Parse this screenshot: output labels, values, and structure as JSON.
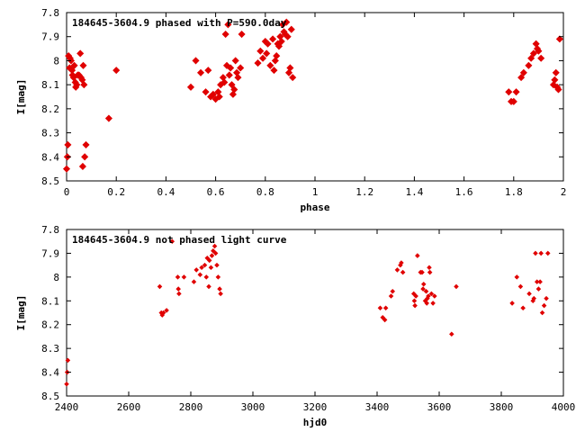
{
  "chart_data": [
    {
      "type": "scatter",
      "title": "184645-3604.9 phased with P=590.0day",
      "xlabel": "phase",
      "ylabel": "I[mag]",
      "xlim": [
        0,
        2
      ],
      "ylim": [
        8.5,
        7.8
      ],
      "y_inverted": true,
      "xticks": [
        0,
        0.2,
        0.4,
        0.6,
        0.8,
        1,
        1.2,
        1.4,
        1.6,
        1.8,
        2
      ],
      "xtick_labels": [
        "0",
        "0.2",
        "0.4",
        "0.6",
        "0.8",
        "1",
        "1.2",
        "1.4",
        "1.6",
        "1.8",
        "2"
      ],
      "yticks": [
        7.8,
        7.9,
        8.0,
        8.1,
        8.2,
        8.3,
        8.4,
        8.5
      ],
      "ytick_labels": [
        "7.8",
        "7.9",
        "8",
        "8.1",
        "8.2",
        "8.3",
        "8.4",
        "8.5"
      ],
      "grid": false,
      "color": "#e00000",
      "series": [
        {
          "name": "",
          "points": [
            [
              0.0,
              8.45
            ],
            [
              0.003,
              8.4
            ],
            [
              0.005,
              8.35
            ],
            [
              0.008,
              7.98
            ],
            [
              0.012,
              8.03
            ],
            [
              0.014,
              7.99
            ],
            [
              0.018,
              8.0
            ],
            [
              0.022,
              8.04
            ],
            [
              0.024,
              8.06
            ],
            [
              0.028,
              8.07
            ],
            [
              0.031,
              8.02
            ],
            [
              0.035,
              8.09
            ],
            [
              0.037,
              8.11
            ],
            [
              0.041,
              8.1
            ],
            [
              0.045,
              8.06
            ],
            [
              0.05,
              8.06
            ],
            [
              0.055,
              7.97
            ],
            [
              0.058,
              8.07
            ],
            [
              0.063,
              8.08
            ],
            [
              0.067,
              8.02
            ],
            [
              0.07,
              8.1
            ],
            [
              0.065,
              8.44
            ],
            [
              0.073,
              8.4
            ],
            [
              0.078,
              8.35
            ],
            [
              0.17,
              8.24
            ],
            [
              0.2,
              8.04
            ],
            [
              0.5,
              8.11
            ],
            [
              0.52,
              8.0
            ],
            [
              0.54,
              8.05
            ],
            [
              0.56,
              8.13
            ],
            [
              0.57,
              8.04
            ],
            [
              0.58,
              8.15
            ],
            [
              0.59,
              8.14
            ],
            [
              0.6,
              8.16
            ],
            [
              0.61,
              8.13
            ],
            [
              0.615,
              8.15
            ],
            [
              0.62,
              8.1
            ],
            [
              0.63,
              8.07
            ],
            [
              0.635,
              8.09
            ],
            [
              0.64,
              7.89
            ],
            [
              0.645,
              8.02
            ],
            [
              0.65,
              7.85
            ],
            [
              0.655,
              8.06
            ],
            [
              0.66,
              8.03
            ],
            [
              0.665,
              8.1
            ],
            [
              0.67,
              8.14
            ],
            [
              0.675,
              8.12
            ],
            [
              0.68,
              8.0
            ],
            [
              0.685,
              8.05
            ],
            [
              0.69,
              8.07
            ],
            [
              0.7,
              8.03
            ],
            [
              0.705,
              7.89
            ],
            [
              0.77,
              8.01
            ],
            [
              0.78,
              7.96
            ],
            [
              0.79,
              7.99
            ],
            [
              0.8,
              7.92
            ],
            [
              0.805,
              7.97
            ],
            [
              0.81,
              7.93
            ],
            [
              0.82,
              8.02
            ],
            [
              0.83,
              7.91
            ],
            [
              0.835,
              8.04
            ],
            [
              0.84,
              8.0
            ],
            [
              0.845,
              7.98
            ],
            [
              0.85,
              7.93
            ],
            [
              0.855,
              7.94
            ],
            [
              0.86,
              7.9
            ],
            [
              0.865,
              7.92
            ],
            [
              0.87,
              7.85
            ],
            [
              0.875,
              7.88
            ],
            [
              0.88,
              7.89
            ],
            [
              0.885,
              7.84
            ],
            [
              0.89,
              7.9
            ],
            [
              0.895,
              8.05
            ],
            [
              0.9,
              8.03
            ],
            [
              0.905,
              7.87
            ],
            [
              0.91,
              8.07
            ],
            [
              1.78,
              8.13
            ],
            [
              1.79,
              8.17
            ],
            [
              1.8,
              8.17
            ],
            [
              1.81,
              8.13
            ],
            [
              1.83,
              8.07
            ],
            [
              1.84,
              8.05
            ],
            [
              1.86,
              8.02
            ],
            [
              1.87,
              7.99
            ],
            [
              1.88,
              7.97
            ],
            [
              1.89,
              7.93
            ],
            [
              1.895,
              7.95
            ],
            [
              1.9,
              7.96
            ],
            [
              1.91,
              7.99
            ],
            [
              1.96,
              8.1
            ],
            [
              1.965,
              8.08
            ],
            [
              1.97,
              8.05
            ],
            [
              1.975,
              8.11
            ],
            [
              1.98,
              8.12
            ],
            [
              1.985,
              7.91
            ]
          ]
        }
      ]
    },
    {
      "type": "scatter",
      "title": "184645-3604.9 not phased light curve",
      "xlabel": "hjd0",
      "ylabel": "I[mag]",
      "xlim": [
        2400,
        4000
      ],
      "ylim": [
        8.5,
        7.8
      ],
      "y_inverted": true,
      "xticks": [
        2400,
        2600,
        2800,
        3000,
        3200,
        3400,
        3600,
        3800,
        4000
      ],
      "xtick_labels": [
        "2400",
        "2600",
        "2800",
        "3000",
        "3200",
        "3400",
        "3600",
        "3800",
        "4000"
      ],
      "yticks": [
        7.8,
        7.9,
        8.0,
        8.1,
        8.2,
        8.3,
        8.4,
        8.5
      ],
      "ytick_labels": [
        "7.8",
        "7.9",
        "8",
        "8.1",
        "8.2",
        "8.3",
        "8.4",
        "8.5"
      ],
      "grid": false,
      "color": "#e00000",
      "series": [
        {
          "name": "",
          "points": [
            [
              2400,
              8.45
            ],
            [
              2402,
              8.4
            ],
            [
              2404,
              8.35
            ],
            [
              2700,
              8.04
            ],
            [
              2705,
              8.15
            ],
            [
              2708,
              8.16
            ],
            [
              2712,
              8.15
            ],
            [
              2722,
              8.14
            ],
            [
              2740,
              7.85
            ],
            [
              2758,
              8.0
            ],
            [
              2760,
              8.05
            ],
            [
              2762,
              8.07
            ],
            [
              2778,
              8.0
            ],
            [
              2810,
              8.02
            ],
            [
              2818,
              7.97
            ],
            [
              2830,
              7.99
            ],
            [
              2835,
              7.96
            ],
            [
              2845,
              7.95
            ],
            [
              2850,
              8.0
            ],
            [
              2853,
              7.92
            ],
            [
              2858,
              8.04
            ],
            [
              2860,
              7.93
            ],
            [
              2865,
              7.96
            ],
            [
              2868,
              7.91
            ],
            [
              2872,
              7.89
            ],
            [
              2877,
              7.87
            ],
            [
              2880,
              7.9
            ],
            [
              2884,
              7.95
            ],
            [
              2888,
              8.0
            ],
            [
              2893,
              8.05
            ],
            [
              2896,
              8.07
            ],
            [
              3410,
              8.13
            ],
            [
              3418,
              8.17
            ],
            [
              3425,
              8.18
            ],
            [
              3428,
              8.13
            ],
            [
              3445,
              8.08
            ],
            [
              3450,
              8.06
            ],
            [
              3465,
              7.97
            ],
            [
              3475,
              7.95
            ],
            [
              3478,
              7.94
            ],
            [
              3483,
              7.98
            ],
            [
              3518,
              8.07
            ],
            [
              3520,
              8.1
            ],
            [
              3522,
              8.12
            ],
            [
              3525,
              8.08
            ],
            [
              3530,
              7.91
            ],
            [
              3540,
              7.98
            ],
            [
              3545,
              7.98
            ],
            [
              3548,
              8.05
            ],
            [
              3550,
              8.03
            ],
            [
              3555,
              8.1
            ],
            [
              3558,
              8.06
            ],
            [
              3560,
              8.11
            ],
            [
              3562,
              8.09
            ],
            [
              3565,
              8.08
            ],
            [
              3568,
              7.96
            ],
            [
              3570,
              7.98
            ],
            [
              3575,
              8.07
            ],
            [
              3580,
              8.11
            ],
            [
              3585,
              8.08
            ],
            [
              3640,
              8.24
            ],
            [
              3655,
              8.04
            ],
            [
              3835,
              8.11
            ],
            [
              3850,
              8.0
            ],
            [
              3862,
              8.04
            ],
            [
              3870,
              8.13
            ],
            [
              3890,
              8.07
            ],
            [
              3902,
              8.1
            ],
            [
              3905,
              8.09
            ],
            [
              3910,
              7.9
            ],
            [
              3915,
              8.02
            ],
            [
              3920,
              8.05
            ],
            [
              3925,
              8.02
            ],
            [
              3928,
              7.9
            ],
            [
              3932,
              8.15
            ],
            [
              3938,
              8.12
            ],
            [
              3945,
              8.09
            ],
            [
              3950,
              7.9
            ]
          ]
        }
      ]
    }
  ]
}
